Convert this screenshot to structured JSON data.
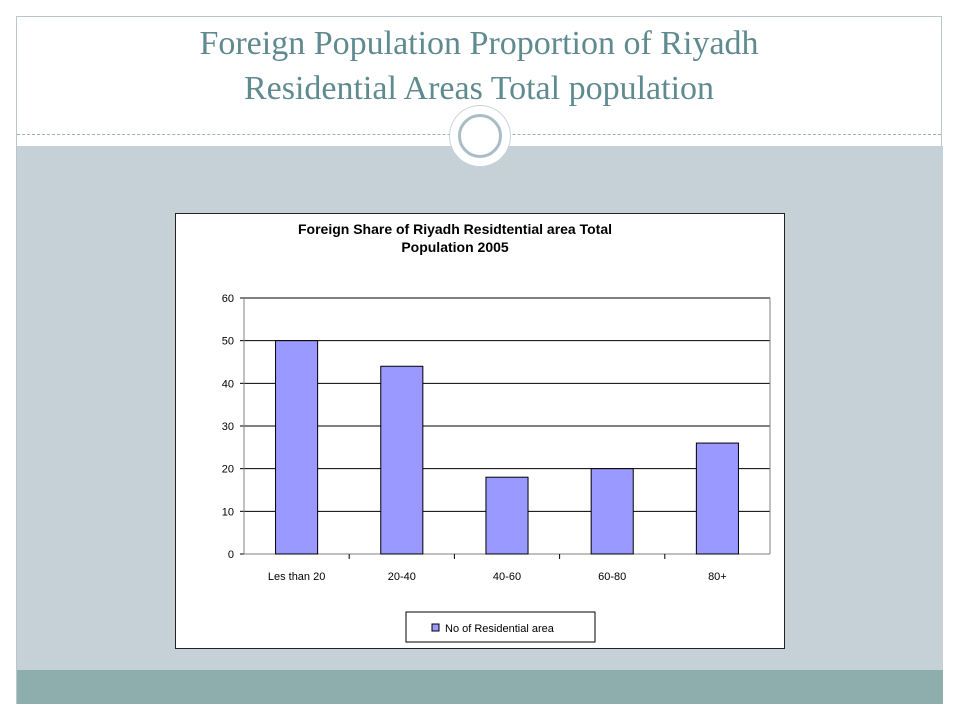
{
  "slide": {
    "title_line1": "Foreign Population Proportion of Riyadh",
    "title_line2": "Residential  Areas Total population"
  },
  "colors": {
    "title": "#5f8a8f",
    "bar_fill": "#9999ff",
    "band": "#c5d1d6",
    "footer": "#8eaeae"
  },
  "chart_data": {
    "type": "bar",
    "title_line1": "Foreign Share of Riyadh Residtential  area Total",
    "title_line2": "Population 2005",
    "categories": [
      "Les than 20",
      "20-40",
      "40-60",
      "60-80",
      "80+"
    ],
    "series": [
      {
        "name": "No of Residential area",
        "values": [
          50,
          44,
          18,
          20,
          26
        ]
      }
    ],
    "ylim": [
      0,
      60
    ],
    "yticks": [
      "0",
      "10",
      "20",
      "30",
      "40",
      "50",
      "60"
    ],
    "grid": true,
    "legend": "bottom"
  }
}
